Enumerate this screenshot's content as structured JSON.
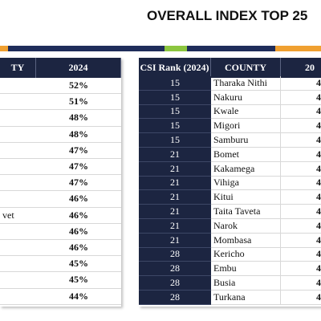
{
  "title": "OVERALL INDEX TOP 25",
  "left_table": {
    "header": [
      "TY",
      "2024"
    ],
    "rows": [
      {
        "value": "52%"
      },
      {
        "value": "51%"
      },
      {
        "value": "48%"
      },
      {
        "value": "48%"
      },
      {
        "value": "47%"
      },
      {
        "value": "47%"
      },
      {
        "value": "47%"
      },
      {
        "value": "46%"
      },
      {
        "county": "vet",
        "value": "46%"
      },
      {
        "value": "46%"
      },
      {
        "value": "46%"
      },
      {
        "value": "45%"
      },
      {
        "value": "45%"
      },
      {
        "value": "44%"
      }
    ]
  },
  "right_table": {
    "header": [
      "CSI Rank (2024)",
      "COUNTY",
      "20"
    ],
    "rows": [
      [
        "15",
        "Tharaka Nithi",
        "4"
      ],
      [
        "15",
        "Nakuru",
        "4"
      ],
      [
        "15",
        "Kwale",
        "4"
      ],
      [
        "15",
        "Migori",
        "4"
      ],
      [
        "15",
        "Samburu",
        "4"
      ],
      [
        "21",
        "Bomet",
        "4"
      ],
      [
        "21",
        "Kakamega",
        "4"
      ],
      [
        "21",
        "Vihiga",
        "4"
      ],
      [
        "21",
        "Kitui",
        "4"
      ],
      [
        "21",
        "Taita Taveta",
        "4"
      ],
      [
        "21",
        "Narok",
        "4"
      ],
      [
        "21",
        "Mombasa",
        "4"
      ],
      [
        "28",
        "Kericho",
        "4"
      ],
      [
        "28",
        "Embu",
        "4"
      ],
      [
        "28",
        "Busia",
        "4"
      ],
      [
        "28",
        "Turkana",
        "4"
      ]
    ]
  }
}
